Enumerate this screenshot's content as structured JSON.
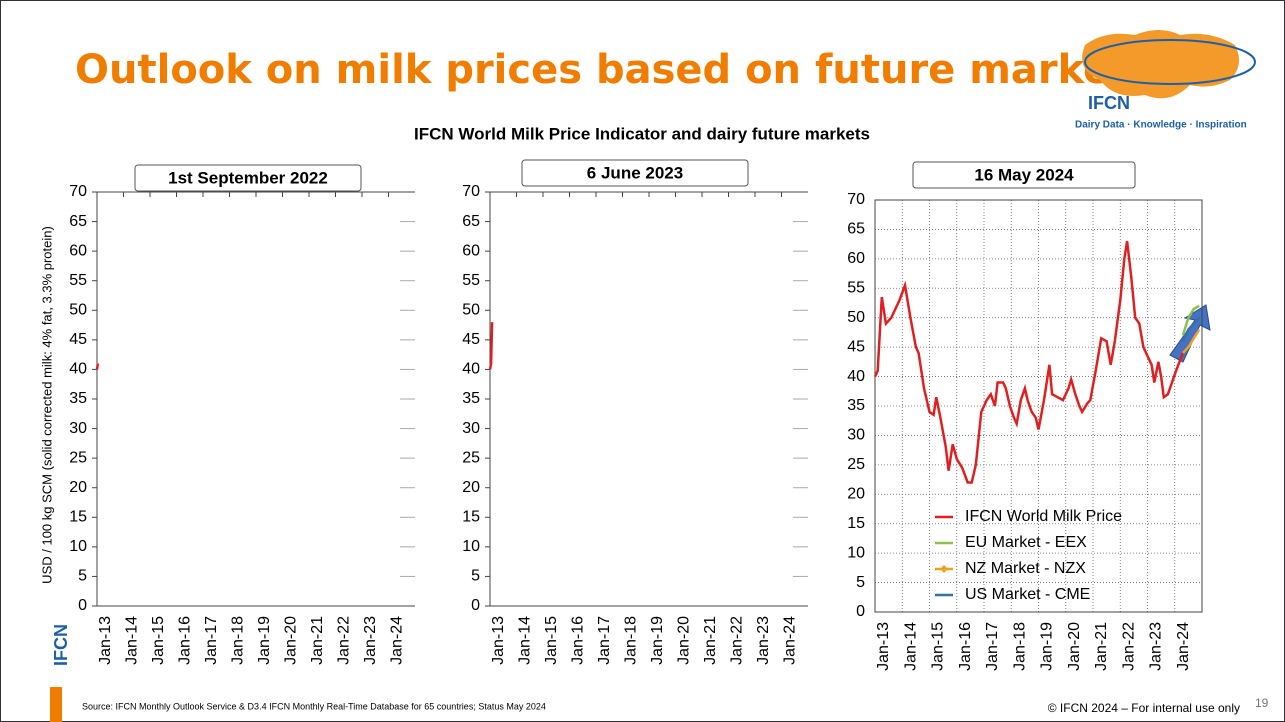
{
  "header": {
    "title": "Outlook on milk prices based on future markets",
    "logo": "IFCN",
    "tagline": "Dairy Data · Knowledge · Inspiration",
    "subtitle": "IFCN World Milk Price Indicator and dairy future markets"
  },
  "y_axis_label": "USD / 100 kg SCM (solid corrected milk: 4% fat, 3.3% protein)",
  "chart_data": [
    {
      "type": "line",
      "title": "1st September 2022",
      "grid": false,
      "xlim": [
        2013,
        2025
      ],
      "ylim": [
        0,
        70
      ],
      "yticks": [
        0,
        5,
        10,
        15,
        20,
        25,
        30,
        35,
        40,
        45,
        50,
        55,
        60,
        65,
        70
      ],
      "xticks": [
        {
          "value": 2013,
          "label": "Jan-13"
        },
        {
          "value": 2014,
          "label": "Jan-14"
        },
        {
          "value": 2015,
          "label": "Jan-15"
        },
        {
          "value": 2016,
          "label": "Jan-16"
        },
        {
          "value": 2017,
          "label": "Jan-17"
        },
        {
          "value": 2018,
          "label": "Jan-18"
        },
        {
          "value": 2019,
          "label": "Jan-19"
        },
        {
          "value": 2020,
          "label": "Jan-20"
        },
        {
          "value": 2021,
          "label": "Jan-21"
        },
        {
          "value": 2022,
          "label": "Jan-22"
        },
        {
          "value": 2023,
          "label": "Jan-23"
        },
        {
          "value": 2024,
          "label": "Jan-24"
        }
      ],
      "series": [
        {
          "color": "#e02020",
          "x": [
            2013,
            2013.03
          ],
          "values": [
            40,
            41
          ]
        }
      ]
    },
    {
      "type": "line",
      "title": "6 June 2023",
      "grid": false,
      "xlim": [
        2013,
        2025
      ],
      "ylim": [
        0,
        70
      ],
      "yticks": [
        0,
        5,
        10,
        15,
        20,
        25,
        30,
        35,
        40,
        45,
        50,
        55,
        60,
        65,
        70
      ],
      "xticks": [
        {
          "value": 2013,
          "label": "Jan-13"
        },
        {
          "value": 2014,
          "label": "Jan-14"
        },
        {
          "value": 2015,
          "label": "Jan-15"
        },
        {
          "value": 2016,
          "label": "Jan-16"
        },
        {
          "value": 2017,
          "label": "Jan-17"
        },
        {
          "value": 2018,
          "label": "Jan-18"
        },
        {
          "value": 2019,
          "label": "Jan-19"
        },
        {
          "value": 2020,
          "label": "Jan-20"
        },
        {
          "value": 2021,
          "label": "Jan-21"
        },
        {
          "value": 2022,
          "label": "Jan-22"
        },
        {
          "value": 2023,
          "label": "Jan-23"
        },
        {
          "value": 2024,
          "label": "Jan-24"
        }
      ],
      "series": [
        {
          "color": "#e02020",
          "x": [
            2013,
            2013.04,
            2013.08
          ],
          "values": [
            40,
            41,
            48
          ]
        }
      ]
    },
    {
      "type": "line",
      "title": "16 May 2024",
      "grid": true,
      "legend": "lower center",
      "xlim": [
        2013,
        2025
      ],
      "ylim": [
        0,
        70
      ],
      "yticks": [
        0,
        5,
        10,
        15,
        20,
        25,
        30,
        35,
        40,
        45,
        50,
        55,
        60,
        65,
        70
      ],
      "xticks": [
        {
          "value": 2013,
          "label": "Jan-13"
        },
        {
          "value": 2014,
          "label": "Jan-14"
        },
        {
          "value": 2015,
          "label": "Jan-15"
        },
        {
          "value": 2016,
          "label": "Jan-16"
        },
        {
          "value": 2017,
          "label": "Jan-17"
        },
        {
          "value": 2018,
          "label": "Jan-18"
        },
        {
          "value": 2019,
          "label": "Jan-19"
        },
        {
          "value": 2020,
          "label": "Jan-20"
        },
        {
          "value": 2021,
          "label": "Jan-21"
        },
        {
          "value": 2022,
          "label": "Jan-22"
        },
        {
          "value": 2023,
          "label": "Jan-23"
        },
        {
          "value": 2024,
          "label": "Jan-24"
        }
      ],
      "series": [
        {
          "name": "IFCN World Milk Price",
          "color": "#e02020",
          "marker": "none",
          "x": [
            2013.0,
            2013.1,
            2013.25,
            2013.4,
            2013.6,
            2013.9,
            2014.1,
            2014.3,
            2014.5,
            2014.6,
            2014.8,
            2015.0,
            2015.15,
            2015.25,
            2015.4,
            2015.6,
            2015.7,
            2015.85,
            2016.0,
            2016.2,
            2016.4,
            2016.55,
            2016.7,
            2016.9,
            2017.1,
            2017.25,
            2017.4,
            2017.5,
            2017.7,
            2017.8,
            2017.95,
            2018.1,
            2018.2,
            2018.35,
            2018.5,
            2018.6,
            2018.75,
            2018.9,
            2019.0,
            2019.2,
            2019.4,
            2019.5,
            2019.7,
            2019.9,
            2020.1,
            2020.2,
            2020.35,
            2020.5,
            2020.6,
            2020.8,
            2020.9,
            2021.1,
            2021.3,
            2021.5,
            2021.65,
            2021.8,
            2022.0,
            2022.15,
            2022.25,
            2022.4,
            2022.55,
            2022.7,
            2022.85,
            2023.0,
            2023.15,
            2023.25,
            2023.4,
            2023.5,
            2023.6,
            2023.75,
            2023.9,
            2024.05,
            2024.3
          ],
          "values": [
            40,
            41,
            53.5,
            49,
            50,
            53,
            55.5,
            50,
            45,
            44,
            38,
            34,
            33.5,
            36.5,
            33,
            28,
            24,
            28.5,
            26,
            24.5,
            22,
            22,
            25,
            34,
            36,
            37,
            35,
            39,
            39,
            38,
            35,
            33,
            32,
            36,
            38,
            36,
            34,
            33,
            31,
            36,
            42,
            37,
            36.5,
            36,
            38,
            39.5,
            37,
            35,
            34,
            35.5,
            36,
            41,
            46.5,
            46,
            42,
            46,
            53,
            60,
            63,
            57,
            50,
            49,
            45,
            43.5,
            42,
            39,
            42.5,
            40,
            36.5,
            37,
            39,
            41,
            44
          ]
        },
        {
          "name": "EU Market - EEX",
          "color": "#8cc152",
          "marker": "dash",
          "x": [
            2024.3,
            2024.5,
            2024.7,
            2024.9
          ],
          "values": [
            47,
            50,
            51.5,
            52
          ]
        },
        {
          "name": "NZ Market - NZX",
          "color": "#f0a020",
          "marker": "diamond",
          "x": [
            2024.3,
            2024.5,
            2024.7,
            2024.9
          ],
          "values": [
            44,
            45,
            46.5,
            48
          ]
        },
        {
          "name": "US Market - CME",
          "color": "#3a6ea5",
          "marker": "dash",
          "x": [
            2024.3,
            2024.5,
            2024.7,
            2024.9
          ],
          "values": [
            46,
            48,
            49,
            50
          ]
        }
      ]
    }
  ],
  "footer": {
    "source": "Source: IFCN Monthly Outlook Service & D3.4 IFCN Monthly Real-Time Database for 65 countries; Status May 2024",
    "copyright": "© IFCN 2024 – For internal use only",
    "page": "19",
    "side_logo": "IFCN"
  }
}
